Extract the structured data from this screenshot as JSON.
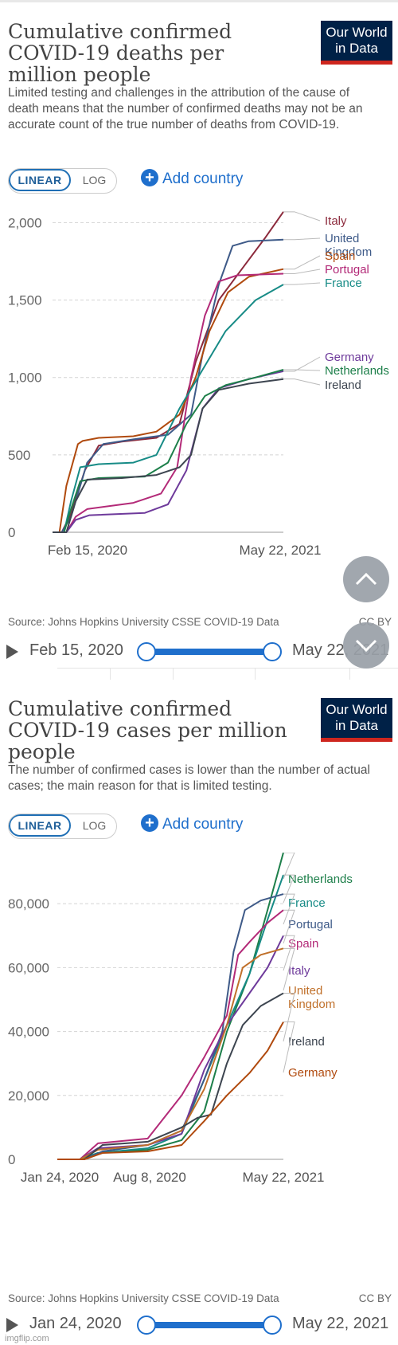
{
  "brand": {
    "logo_line1": "Our World",
    "logo_line2": "in Data",
    "bg_color": "#002147",
    "accent_color": "#ce261e"
  },
  "controls": {
    "linear_label": "LINEAR",
    "log_label": "LOG",
    "add_country_label": "Add country",
    "accent_color": "#1f6fcc"
  },
  "watermark": "imgflip.com",
  "charts": [
    {
      "title": "Cumulative confirmed COVID-19 deaths per million people",
      "subtitle": "Limited testing and challenges in the attribution of the cause of death means that the number of confirmed deaths may not be an accurate count of the true number of deaths from COVID-19.",
      "source": "Source: Johns Hopkins University CSSE COVID-19 Data",
      "license": "CC BY",
      "timeline_start": "Feb 15, 2020",
      "timeline_end": "May 22, 2021"
    },
    {
      "title": "Cumulative confirmed COVID-19 cases per million people",
      "subtitle": "The number of confirmed cases is lower than the number of actual cases; the main reason for that is limited testing.",
      "source": "Source: Johns Hopkins University CSSE COVID-19 Data",
      "license": "CC BY",
      "timeline_start": "Jan 24, 2020",
      "timeline_end": "May 22, 2021"
    }
  ],
  "chart_data": [
    {
      "type": "line",
      "title": "Cumulative confirmed COVID-19 deaths per million people",
      "x_ticks": [
        "Feb 15, 2020",
        "May 22, 2021"
      ],
      "y_ticks": [
        0,
        500,
        1000,
        1500,
        2000
      ],
      "ylim": [
        0,
        2100
      ],
      "grid": true,
      "legend_placement": "right end labels",
      "series": [
        {
          "name": "Italy",
          "color": "#8c2a3c",
          "points": [
            [
              0,
              0
            ],
            [
              0.04,
              0
            ],
            [
              0.08,
              120
            ],
            [
              0.14,
              400
            ],
            [
              0.2,
              560
            ],
            [
              0.3,
              585
            ],
            [
              0.45,
              610
            ],
            [
              0.55,
              700
            ],
            [
              0.62,
              1100
            ],
            [
              0.72,
              1500
            ],
            [
              0.82,
              1700
            ],
            [
              0.92,
              1900
            ],
            [
              1,
              2070
            ]
          ]
        },
        {
          "name": "United Kingdom",
          "color": "#3e5a88",
          "points": [
            [
              0,
              0
            ],
            [
              0.04,
              0
            ],
            [
              0.08,
              100
            ],
            [
              0.15,
              450
            ],
            [
              0.22,
              570
            ],
            [
              0.35,
              600
            ],
            [
              0.5,
              630
            ],
            [
              0.6,
              760
            ],
            [
              0.65,
              1150
            ],
            [
              0.72,
              1600
            ],
            [
              0.78,
              1850
            ],
            [
              0.85,
              1880
            ],
            [
              1,
              1890
            ]
          ]
        },
        {
          "name": "Spain",
          "color": "#b04a0e",
          "points": [
            [
              0,
              0
            ],
            [
              0.03,
              0
            ],
            [
              0.06,
              300
            ],
            [
              0.11,
              570
            ],
            [
              0.13,
              590
            ],
            [
              0.2,
              610
            ],
            [
              0.35,
              620
            ],
            [
              0.45,
              650
            ],
            [
              0.55,
              760
            ],
            [
              0.62,
              1000
            ],
            [
              0.68,
              1300
            ],
            [
              0.76,
              1550
            ],
            [
              0.85,
              1650
            ],
            [
              1,
              1700
            ]
          ]
        },
        {
          "name": "Portugal",
          "color": "#b32a78",
          "points": [
            [
              0,
              0
            ],
            [
              0.06,
              0
            ],
            [
              0.1,
              100
            ],
            [
              0.15,
              150
            ],
            [
              0.35,
              190
            ],
            [
              0.47,
              250
            ],
            [
              0.54,
              420
            ],
            [
              0.6,
              1000
            ],
            [
              0.66,
              1400
            ],
            [
              0.72,
              1620
            ],
            [
              0.8,
              1660
            ],
            [
              1,
              1670
            ]
          ]
        },
        {
          "name": "France",
          "color": "#178b86",
          "points": [
            [
              0,
              0
            ],
            [
              0.05,
              0
            ],
            [
              0.08,
              200
            ],
            [
              0.12,
              420
            ],
            [
              0.2,
              440
            ],
            [
              0.35,
              450
            ],
            [
              0.45,
              500
            ],
            [
              0.55,
              800
            ],
            [
              0.65,
              1050
            ],
            [
              0.75,
              1300
            ],
            [
              0.88,
              1500
            ],
            [
              1,
              1600
            ]
          ]
        },
        {
          "name": "Germany",
          "color": "#6e3a9b",
          "points": [
            [
              0,
              0
            ],
            [
              0.06,
              0
            ],
            [
              0.1,
              80
            ],
            [
              0.16,
              110
            ],
            [
              0.4,
              125
            ],
            [
              0.5,
              180
            ],
            [
              0.58,
              400
            ],
            [
              0.65,
              800
            ],
            [
              0.72,
              930
            ],
            [
              0.85,
              990
            ],
            [
              1,
              1040
            ]
          ]
        },
        {
          "name": "Netherlands",
          "color": "#1d7f4a",
          "points": [
            [
              0,
              0
            ],
            [
              0.05,
              0
            ],
            [
              0.08,
              150
            ],
            [
              0.12,
              330
            ],
            [
              0.2,
              350
            ],
            [
              0.4,
              360
            ],
            [
              0.5,
              450
            ],
            [
              0.58,
              700
            ],
            [
              0.66,
              880
            ],
            [
              0.75,
              950
            ],
            [
              0.88,
              1000
            ],
            [
              1,
              1050
            ]
          ]
        },
        {
          "name": "Ireland",
          "color": "#3d4550",
          "points": [
            [
              0,
              0
            ],
            [
              0.06,
              0
            ],
            [
              0.1,
              200
            ],
            [
              0.15,
              340
            ],
            [
              0.3,
              350
            ],
            [
              0.45,
              370
            ],
            [
              0.55,
              420
            ],
            [
              0.6,
              500
            ],
            [
              0.65,
              800
            ],
            [
              0.72,
              920
            ],
            [
              0.85,
              960
            ],
            [
              1,
              990
            ]
          ]
        }
      ]
    },
    {
      "type": "line",
      "title": "Cumulative confirmed COVID-19 cases per million people",
      "x_ticks": [
        "Jan 24, 2020",
        "Aug 8, 2020",
        "May 22, 2021"
      ],
      "y_ticks": [
        0,
        20000,
        40000,
        60000,
        80000
      ],
      "ylim": [
        0,
        96000
      ],
      "grid": true,
      "legend_placement": "right end labels",
      "series": [
        {
          "name": "Netherlands",
          "color": "#1d7f4a",
          "points": [
            [
              0,
              0
            ],
            [
              0.1,
              0
            ],
            [
              0.18,
              2000
            ],
            [
              0.4,
              3000
            ],
            [
              0.55,
              6000
            ],
            [
              0.65,
              15000
            ],
            [
              0.75,
              40000
            ],
            [
              0.85,
              58000
            ],
            [
              0.93,
              78000
            ],
            [
              1,
              96000
            ]
          ]
        },
        {
          "name": "France",
          "color": "#178b86",
          "points": [
            [
              0,
              0
            ],
            [
              0.1,
              0
            ],
            [
              0.18,
              2000
            ],
            [
              0.4,
              3500
            ],
            [
              0.55,
              8000
            ],
            [
              0.65,
              25000
            ],
            [
              0.75,
              42000
            ],
            [
              0.85,
              58000
            ],
            [
              0.93,
              75000
            ],
            [
              1,
              89000
            ]
          ]
        },
        {
          "name": "Portugal",
          "color": "#3e5a88",
          "points": [
            [
              0,
              0
            ],
            [
              0.12,
              0
            ],
            [
              0.2,
              2500
            ],
            [
              0.4,
              4500
            ],
            [
              0.55,
              9000
            ],
            [
              0.65,
              25000
            ],
            [
              0.73,
              40000
            ],
            [
              0.78,
              65000
            ],
            [
              0.83,
              78000
            ],
            [
              0.9,
              81000
            ],
            [
              1,
              83000
            ]
          ]
        },
        {
          "name": "Spain",
          "color": "#b32a78",
          "points": [
            [
              0,
              0
            ],
            [
              0.1,
              0
            ],
            [
              0.18,
              5000
            ],
            [
              0.4,
              6500
            ],
            [
              0.55,
              20000
            ],
            [
              0.65,
              32000
            ],
            [
              0.75,
              45000
            ],
            [
              0.8,
              64000
            ],
            [
              0.85,
              68000
            ],
            [
              0.93,
              74000
            ],
            [
              1,
              78000
            ]
          ]
        },
        {
          "name": "Italy",
          "color": "#6e3a9b",
          "points": [
            [
              0,
              0
            ],
            [
              0.1,
              0
            ],
            [
              0.18,
              3500
            ],
            [
              0.4,
              4500
            ],
            [
              0.55,
              8000
            ],
            [
              0.65,
              28000
            ],
            [
              0.75,
              42000
            ],
            [
              0.85,
              52000
            ],
            [
              0.93,
              60000
            ],
            [
              1,
              70000
            ]
          ]
        },
        {
          "name": "United Kingdom",
          "color": "#c0702a",
          "points": [
            [
              0,
              0
            ],
            [
              0.1,
              0
            ],
            [
              0.18,
              3000
            ],
            [
              0.4,
              4500
            ],
            [
              0.55,
              9000
            ],
            [
              0.65,
              22000
            ],
            [
              0.75,
              42000
            ],
            [
              0.82,
              60000
            ],
            [
              0.9,
              64000
            ],
            [
              1,
              66000
            ]
          ]
        },
        {
          "name": "Ireland",
          "color": "#3d4550",
          "points": [
            [
              0,
              0
            ],
            [
              0.12,
              0
            ],
            [
              0.2,
              4500
            ],
            [
              0.4,
              5500
            ],
            [
              0.55,
              10000
            ],
            [
              0.62,
              13000
            ],
            [
              0.68,
              14000
            ],
            [
              0.75,
              30000
            ],
            [
              0.82,
              42000
            ],
            [
              0.9,
              48000
            ],
            [
              1,
              52000
            ]
          ]
        },
        {
          "name": "Germany",
          "color": "#b04a0e",
          "points": [
            [
              0,
              0
            ],
            [
              0.12,
              0
            ],
            [
              0.2,
              2000
            ],
            [
              0.4,
              2500
            ],
            [
              0.55,
              4500
            ],
            [
              0.65,
              12000
            ],
            [
              0.75,
              20000
            ],
            [
              0.85,
              27000
            ],
            [
              0.93,
              34000
            ],
            [
              1,
              43000
            ]
          ]
        }
      ]
    }
  ]
}
